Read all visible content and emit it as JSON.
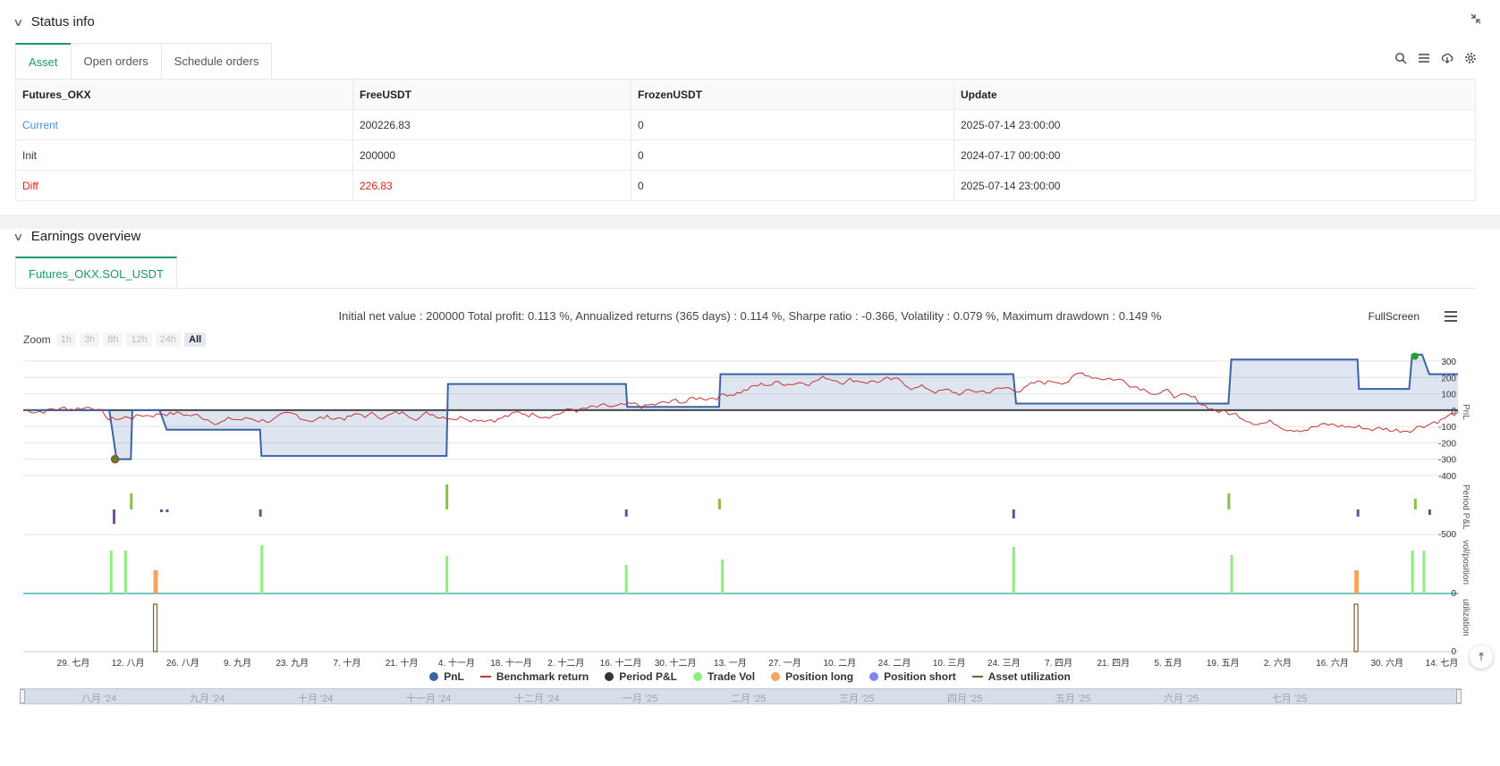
{
  "status": {
    "title": "Status info",
    "tabs": [
      "Asset",
      "Open orders",
      "Schedule orders"
    ],
    "table": {
      "headers": [
        "Futures_OKX",
        "FreeUSDT",
        "FrozenUSDT",
        "Update"
      ],
      "rows": [
        [
          "Current",
          "200226.83",
          "0",
          "2025-07-14 23:00:00"
        ],
        [
          "Init",
          "200000",
          "0",
          "2024-07-17 00:00:00"
        ],
        [
          "Diff",
          "226.83",
          "0",
          "2025-07-14 23:00:00"
        ]
      ]
    }
  },
  "earnings": {
    "title": "Earnings overview",
    "tab": "Futures_OKX.SOL_USDT",
    "summary": "Initial net value : 200000 Total profit: 0.113 %, Annualized returns (365 days) : 0.114 %, Sharpe ratio : -0.366, Volatility : 0.079 %, Maximum drawdown : 0.149 %",
    "fullscreen": "FullScreen",
    "zoom_label": "Zoom",
    "zoom_buttons": [
      "1h",
      "3h",
      "8h",
      "12h",
      "24h",
      "All"
    ],
    "zoom_selected": "All"
  },
  "chart_data": {
    "type": "line",
    "x_ticks": [
      "29. 七月",
      "12. 八月",
      "26. 八月",
      "9. 九月",
      "23. 九月",
      "7. 十月",
      "21. 十月",
      "4. 十一月",
      "18. 十一月",
      "2. 十二月",
      "16. 十二月",
      "30. 十二月",
      "13. 一月",
      "27. 一月",
      "10. 二月",
      "24. 二月",
      "10. 三月",
      "24. 三月",
      "7. 四月",
      "21. 四月",
      "5. 五月",
      "19. 五月",
      "2. 六月",
      "16. 六月",
      "30. 六月",
      "14. 七月"
    ],
    "pnl_axis": {
      "ticks": [
        "300",
        "200",
        "100",
        "0",
        "-100",
        "-200",
        "-300",
        "-400"
      ],
      "ylim": [
        -400,
        300
      ],
      "label": "PnL"
    },
    "period_axis": {
      "ticks": [
        "-500"
      ],
      "label": "Period P&L"
    },
    "vol_axis": {
      "ticks": [
        "0"
      ],
      "label": "vol/position"
    },
    "util_axis": {
      "ticks": [
        "0"
      ],
      "label": "utilization"
    },
    "pnl_steps": [
      [
        0,
        0
      ],
      [
        0.06,
        0
      ],
      [
        0.065,
        -300
      ],
      [
        0.075,
        -300
      ],
      [
        0.076,
        0
      ],
      [
        0.095,
        0
      ],
      [
        0.1,
        -120
      ],
      [
        0.165,
        -120
      ],
      [
        0.166,
        -280
      ],
      [
        0.295,
        -280
      ],
      [
        0.296,
        160
      ],
      [
        0.42,
        160
      ],
      [
        0.421,
        20
      ],
      [
        0.485,
        20
      ],
      [
        0.486,
        220
      ],
      [
        0.69,
        220
      ],
      [
        0.692,
        40
      ],
      [
        0.84,
        40
      ],
      [
        0.842,
        310
      ],
      [
        0.93,
        310
      ],
      [
        0.931,
        130
      ],
      [
        0.966,
        130
      ],
      [
        0.968,
        340
      ],
      [
        0.975,
        340
      ],
      [
        0.98,
        220
      ],
      [
        1.0,
        220
      ]
    ],
    "series": [
      {
        "name": "PnL",
        "color": "#3a63a5"
      },
      {
        "name": "Benchmark return",
        "color": "#c23531"
      },
      {
        "name": "Period P&L",
        "color": "#333333"
      },
      {
        "name": "Trade Vol",
        "color": "#90ed7d"
      },
      {
        "name": "Position long",
        "color": "#f7a35c"
      },
      {
        "name": "Position short",
        "color": "#8085e9"
      },
      {
        "name": "Asset utilization",
        "color": "#7a5c2e"
      }
    ]
  },
  "navigator": {
    "labels": [
      "八月 '24",
      "九月 '24",
      "十月 '24",
      "十一月 '24",
      "十二月 '24",
      "一月 '25",
      "二月 '25",
      "三月 '25",
      "四月 '25",
      "五月 '25",
      "六月 '25",
      "七月 '25"
    ]
  }
}
